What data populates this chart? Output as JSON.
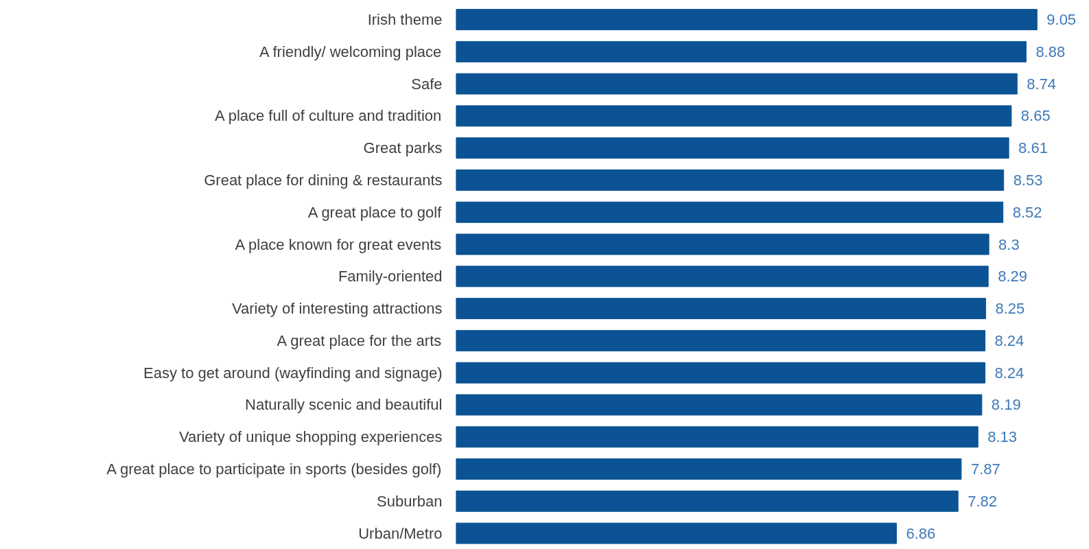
{
  "chart_data": {
    "type": "bar",
    "orientation": "horizontal",
    "categories": [
      "Irish theme",
      "A friendly/ welcoming place",
      "Safe",
      "A place full of culture and tradition",
      "Great parks",
      "Great place for dining & restaurants",
      "A great place to golf",
      "A place known for great events",
      "Family-oriented",
      "Variety of interesting attractions",
      "A great place for the arts",
      "Easy to get around (wayfinding and signage)",
      "Naturally scenic and beautiful",
      "Variety of unique shopping experiences",
      "A great place to participate in sports (besides golf)",
      "Suburban",
      "Urban/Metro"
    ],
    "values": [
      9.05,
      8.88,
      8.74,
      8.65,
      8.61,
      8.53,
      8.52,
      8.3,
      8.29,
      8.25,
      8.24,
      8.24,
      8.19,
      8.13,
      7.87,
      7.82,
      6.86
    ],
    "color": "#0b5394",
    "data_labels": true,
    "grid": false,
    "tick_labels": "y"
  }
}
